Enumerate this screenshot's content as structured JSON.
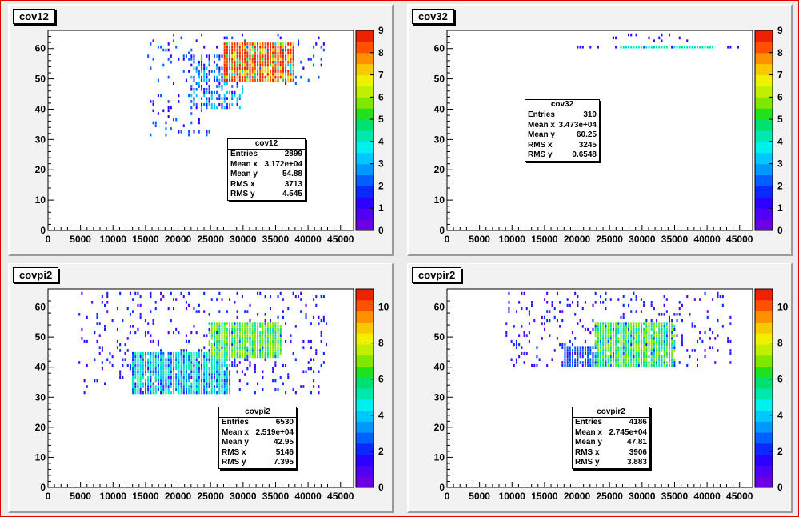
{
  "window": {
    "border_color": "#e00000"
  },
  "palette": [
    "#6b00e0",
    "#4f00f5",
    "#2c00ff",
    "#0a28ff",
    "#0060ff",
    "#0098ff",
    "#00c8ff",
    "#00f0f0",
    "#00e8b0",
    "#00e070",
    "#20e020",
    "#80e800",
    "#c0f000",
    "#f0f000",
    "#f8c800",
    "#ff9000",
    "#ff5000",
    "#ee2200"
  ],
  "chart_data": [
    {
      "type": "heatmap",
      "title": "cov12",
      "xlim": [
        0,
        47000
      ],
      "ylim": [
        0,
        66
      ],
      "xticks": [
        "0",
        "5000",
        "10000",
        "15000",
        "20000",
        "25000",
        "30000",
        "35000",
        "40000",
        "45000"
      ],
      "yticks": [
        "0",
        "10",
        "20",
        "30",
        "40",
        "50",
        "60"
      ],
      "zmax": 9,
      "zticks": [
        "0",
        "1",
        "2",
        "3",
        "4",
        "5",
        "6",
        "7",
        "8",
        "9"
      ],
      "stats": {
        "title": "cov12",
        "rows": [
          [
            "Entries",
            "2899"
          ],
          [
            "Mean x",
            "3.172e+04"
          ],
          [
            "Mean y",
            "54.88"
          ],
          [
            "RMS x",
            "3713"
          ],
          [
            "RMS y",
            "4.545"
          ]
        ]
      },
      "clusters": [
        {
          "x": [
            27000,
            38000
          ],
          "y": [
            49,
            62
          ],
          "n": 1500,
          "z": [
            2,
            9
          ]
        },
        {
          "x": [
            22000,
            30000
          ],
          "y": [
            40,
            58
          ],
          "n": 220,
          "z": [
            1,
            3
          ]
        },
        {
          "x": [
            16000,
            25000
          ],
          "y": [
            31,
            45
          ],
          "n": 50,
          "z": [
            1,
            2
          ]
        },
        {
          "x": [
            15000,
            43000
          ],
          "y": [
            48,
            65
          ],
          "n": 110,
          "z": [
            1,
            2
          ]
        }
      ]
    },
    {
      "type": "heatmap",
      "title": "cov32",
      "xlim": [
        0,
        47000
      ],
      "ylim": [
        0,
        66
      ],
      "xticks": [
        "0",
        "5000",
        "10000",
        "15000",
        "20000",
        "25000",
        "30000",
        "35000",
        "40000",
        "45000"
      ],
      "yticks": [
        "0",
        "10",
        "20",
        "30",
        "40",
        "50",
        "60"
      ],
      "zmax": 9,
      "zticks": [
        "0",
        "1",
        "2",
        "3",
        "4",
        "5",
        "6",
        "7",
        "8",
        "9"
      ],
      "stats": {
        "title": "cov32",
        "rows": [
          [
            "Entries",
            "310"
          ],
          [
            "Mean x",
            "3.473e+04"
          ],
          [
            "Mean y",
            "60.25"
          ],
          [
            "RMS x",
            "3245"
          ],
          [
            "RMS y",
            "0.6548"
          ]
        ]
      },
      "clusters": [
        {
          "x": [
            27000,
            41000
          ],
          "y": [
            60,
            61
          ],
          "n": 170,
          "z": [
            1,
            4
          ]
        },
        {
          "x": [
            20000,
            45000
          ],
          "y": [
            60,
            61
          ],
          "n": 25,
          "z": [
            1,
            1
          ]
        },
        {
          "x": [
            25000,
            38000
          ],
          "y": [
            62,
            65
          ],
          "n": 15,
          "z": [
            1,
            1
          ]
        }
      ]
    },
    {
      "type": "heatmap",
      "title": "covpi2",
      "xlim": [
        0,
        47000
      ],
      "ylim": [
        0,
        66
      ],
      "xticks": [
        "0",
        "5000",
        "10000",
        "15000",
        "20000",
        "25000",
        "30000",
        "35000",
        "40000",
        "45000"
      ],
      "yticks": [
        "0",
        "10",
        "20",
        "30",
        "40",
        "50",
        "60"
      ],
      "zmax": 11,
      "zticks": [
        "0",
        "2",
        "4",
        "6",
        "8",
        "10"
      ],
      "stats": {
        "title": "covpi2",
        "rows": [
          [
            "Entries",
            "6530"
          ],
          [
            "Mean x",
            "2.519e+04"
          ],
          [
            "Mean y",
            "42.95"
          ],
          [
            "RMS x",
            "5146"
          ],
          [
            "RMS y",
            "7.395"
          ]
        ]
      },
      "clusters": [
        {
          "x": [
            25000,
            36000
          ],
          "y": [
            43,
            55
          ],
          "n": 1400,
          "z": [
            2,
            7
          ]
        },
        {
          "x": [
            13000,
            28000
          ],
          "y": [
            31,
            45
          ],
          "n": 1600,
          "z": [
            1,
            5
          ]
        },
        {
          "x": [
            5000,
            43000
          ],
          "y": [
            31,
            65
          ],
          "n": 420,
          "z": [
            1,
            2
          ]
        }
      ]
    },
    {
      "type": "heatmap",
      "title": "covpir2",
      "xlim": [
        0,
        47000
      ],
      "ylim": [
        0,
        66
      ],
      "xticks": [
        "0",
        "5000",
        "10000",
        "15000",
        "20000",
        "25000",
        "30000",
        "35000",
        "40000",
        "45000"
      ],
      "yticks": [
        "0",
        "10",
        "20",
        "30",
        "40",
        "50",
        "60"
      ],
      "zmax": 11,
      "zticks": [
        "0",
        "2",
        "4",
        "6",
        "8",
        "10"
      ],
      "stats": {
        "title": "covpir2",
        "rows": [
          [
            "Entries",
            "4186"
          ],
          [
            "Mean x",
            "2.745e+04"
          ],
          [
            "Mean y",
            "47.81"
          ],
          [
            "RMS x",
            "3906"
          ],
          [
            "RMS y",
            "3.883"
          ]
        ]
      },
      "clusters": [
        {
          "x": [
            23000,
            35000
          ],
          "y": [
            40,
            55
          ],
          "n": 1500,
          "z": [
            2,
            7
          ]
        },
        {
          "x": [
            18000,
            28000
          ],
          "y": [
            40,
            47
          ],
          "n": 350,
          "z": [
            1,
            3
          ]
        },
        {
          "x": [
            9000,
            44000
          ],
          "y": [
            40,
            65
          ],
          "n": 300,
          "z": [
            1,
            2
          ]
        }
      ]
    }
  ]
}
